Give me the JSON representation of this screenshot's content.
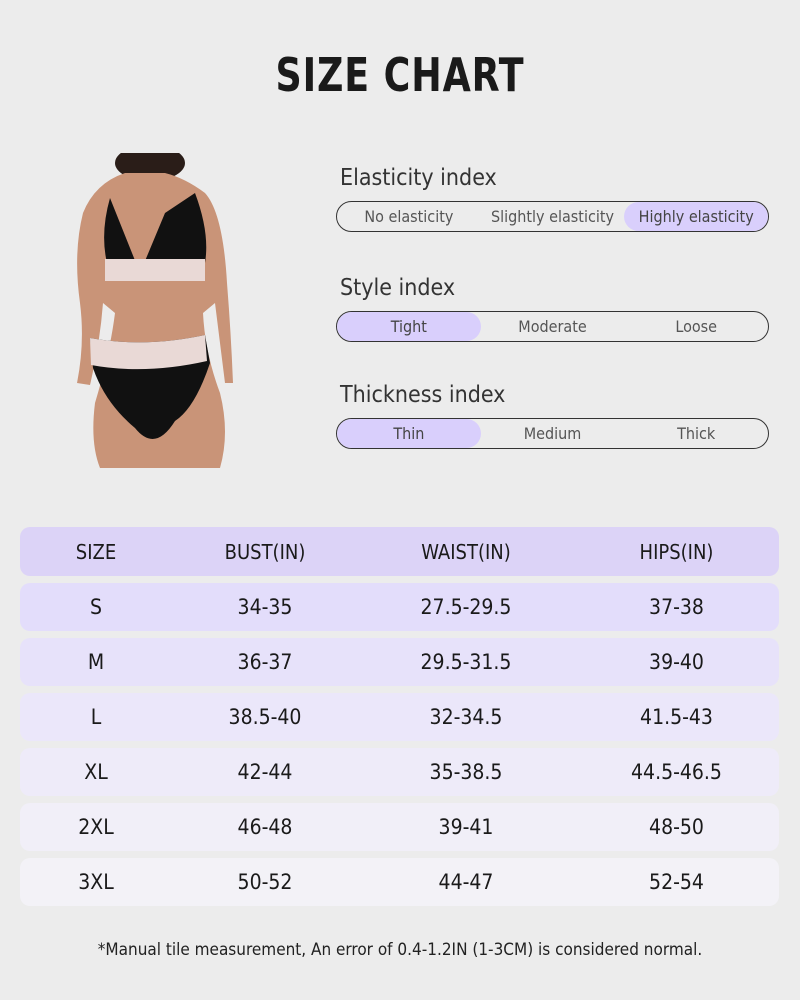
{
  "title": "SIZE CHART",
  "indices": [
    {
      "label": "Elasticity index",
      "options": [
        "No elasticity",
        "Slightly elasticity",
        "Highly elasticity"
      ],
      "selected": 2
    },
    {
      "label": "Style index",
      "options": [
        "Tight",
        "Moderate",
        "Loose"
      ],
      "selected": 0
    },
    {
      "label": "Thickness index",
      "options": [
        "Thin",
        "Medium",
        "Thick"
      ],
      "selected": 0
    }
  ],
  "table": {
    "headers": [
      "SIZE",
      "BUST(IN)",
      "WAIST(IN)",
      "HIPS(IN)"
    ],
    "rows": [
      [
        "S",
        "34-35",
        "27.5-29.5",
        "37-38"
      ],
      [
        "M",
        "36-37",
        "29.5-31.5",
        "39-40"
      ],
      [
        "L",
        "38.5-40",
        "32-34.5",
        "41.5-43"
      ],
      [
        "XL",
        "42-44",
        "35-38.5",
        "44.5-46.5"
      ],
      [
        "2XL",
        "46-48",
        "39-41",
        "48-50"
      ],
      [
        "3XL",
        "50-52",
        "44-47",
        "52-54"
      ]
    ]
  },
  "row_colors": [
    "#e3ddfb",
    "#e7e2fa",
    "#ebe7fa",
    "#eeebf9",
    "#f1eff8",
    "#f3f2f7"
  ],
  "accent": "#d9cffc",
  "note": "*Manual tile measurement, An error of 0.4-1.2IN (1-3CM) is considered normal."
}
